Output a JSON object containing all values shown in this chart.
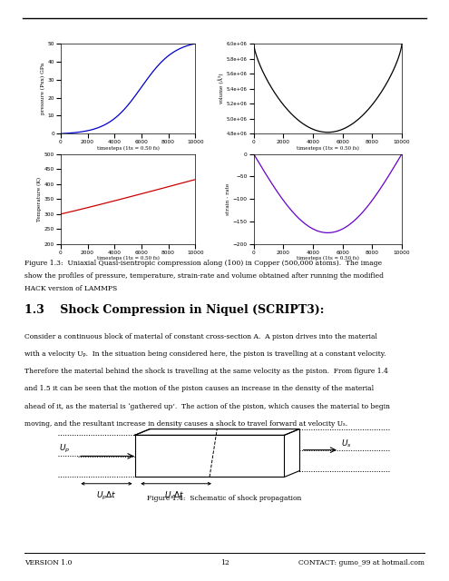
{
  "page_bg": "#ffffff",
  "fig_caption": "Figure 1.3:  Uniaxial Quasi-isentropic compression along (100) in Copper (500,000 atoms).  The image\nshow the profiles of pressure, temperature, strain-rate and volume obtained after running the modified\nHACK version of LAMMPS",
  "section_title": "1.3    Shock Compression in Niquel (SCRIPT3):",
  "body_lines": [
    "Consider a continuous block of material of constant cross-section A.  A piston drives into the material",
    "with a velocity Uₚ.  In the situation being considered here, the piston is travelling at a constant velocity.",
    "Therefore the material behind the shock is travelling at the same velocity as the piston.  From figure 1.4",
    "and 1.5 it can be seen that the motion of the piston causes an increase in the density of the material",
    "ahead of it, as the material is ‘gathered up’.  The action of the piston, which causes the material to begin",
    "moving, and the resultant increase in density causes a shock to travel forward at velocity Uₛ."
  ],
  "fig14_caption": "Figure 1.4:  Schematic of shock propagation",
  "footer_left": "VERSION 1.0",
  "footer_center": "12",
  "footer_right": "CONTACT: gumo_99 at hotmail.com",
  "plot_xlabel": "timesteps (1ts = 0.50 fs)",
  "pressure_ylabel": "pressure (Pxx) GPa",
  "volume_ylabel": "volume (Å³)",
  "temp_ylabel": "Temperature (K)",
  "strain_ylabel": "strain - rate",
  "pressure_ylim": [
    0,
    50
  ],
  "pressure_yticks": [
    0,
    10,
    20,
    30,
    40,
    50
  ],
  "volume_ylim": [
    4800000.0,
    6000000.0
  ],
  "volume_yticks": [
    4800000.0,
    5000000.0,
    5200000.0,
    5400000.0,
    5600000.0,
    5800000.0,
    6000000.0
  ],
  "temp_ylim": [
    200,
    500
  ],
  "temp_yticks": [
    200,
    250,
    300,
    350,
    400,
    450,
    500
  ],
  "strain_ylim": [
    -200,
    0
  ],
  "strain_yticks": [
    -200,
    -150,
    -100,
    -50,
    0
  ],
  "x_max": 10000,
  "x_ticks": [
    0,
    2000,
    4000,
    6000,
    8000,
    10000
  ],
  "pressure_color": "#0000cc",
  "volume_color": "#000000",
  "temp_color": "#cc0000",
  "strain_color": "#6600cc"
}
